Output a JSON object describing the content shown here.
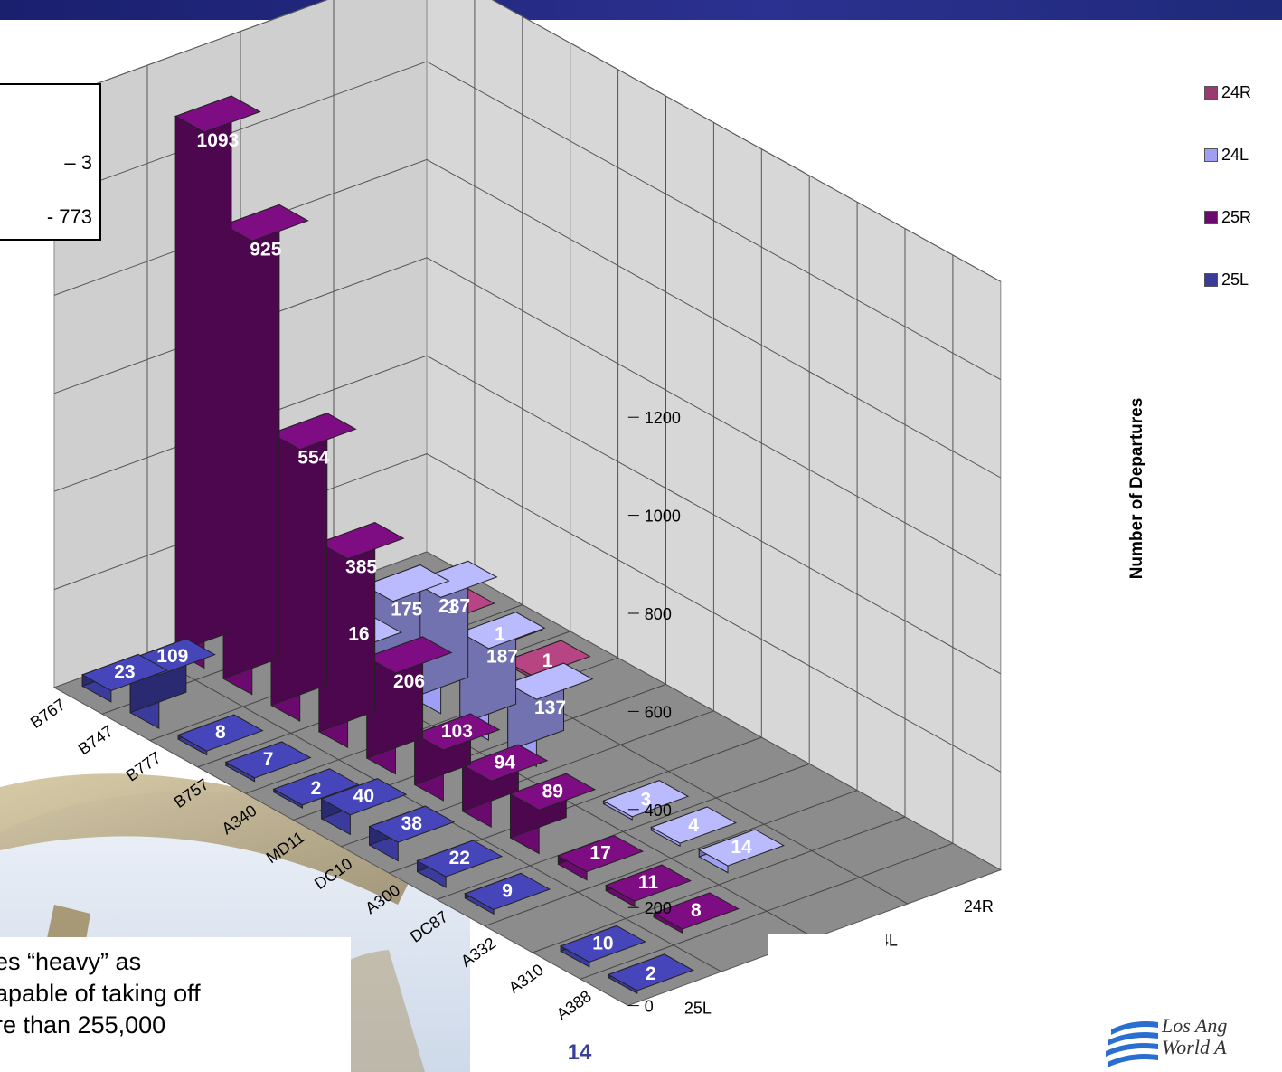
{
  "chart_data": {
    "type": "bar",
    "subtype": "3d-bar",
    "categories": [
      "B767",
      "B747",
      "B777",
      "B757",
      "A340",
      "MD11",
      "DC10",
      "A300",
      "DC87",
      "A332",
      "A310",
      "A388"
    ],
    "series_axis": [
      "25L",
      "25R",
      "24L",
      "24R"
    ],
    "series": [
      {
        "name": "25L",
        "color": "#3b3b9e",
        "values": [
          23,
          109,
          8,
          7,
          2,
          40,
          38,
          22,
          9,
          null,
          10,
          2
        ]
      },
      {
        "name": "25R",
        "color": "#6b0a6e",
        "values": [
          1093,
          925,
          554,
          385,
          206,
          103,
          94,
          89,
          17,
          11,
          8,
          null
        ]
      },
      {
        "name": "24L",
        "color": "#9e9ef5",
        "values": [
          null,
          16,
          175,
          237,
          187,
          137,
          null,
          3,
          4,
          14,
          null,
          null
        ]
      },
      {
        "name": "24R",
        "color": "#9b3a6f",
        "values": [
          null,
          1,
          1,
          1,
          null,
          null,
          null,
          null,
          null,
          null,
          null,
          null
        ]
      }
    ],
    "ylabel": "Number of Departures",
    "ylim": [
      0,
      1200
    ],
    "yticks": [
      "0",
      "200",
      "400",
      "600",
      "800",
      "1000",
      "1200"
    ],
    "legend_position": "top-right",
    "grid": true
  },
  "legend": [
    {
      "label": "24R",
      "color": "#9b3a6f"
    },
    {
      "label": "24L",
      "color": "#9e9ef5"
    },
    {
      "label": "25R",
      "color": "#6b0a6e"
    },
    {
      "label": "25L",
      "color": "#3b3b9e"
    }
  ],
  "infobox": {
    "line1": "– 3",
    "line2": "- 773"
  },
  "note": {
    "line1": "es “heavy” as",
    "line2": "apable of taking off",
    "line3": "re than 255,000"
  },
  "page_number": "14",
  "logo": {
    "line1": "Los Ang",
    "line2": "World A"
  }
}
